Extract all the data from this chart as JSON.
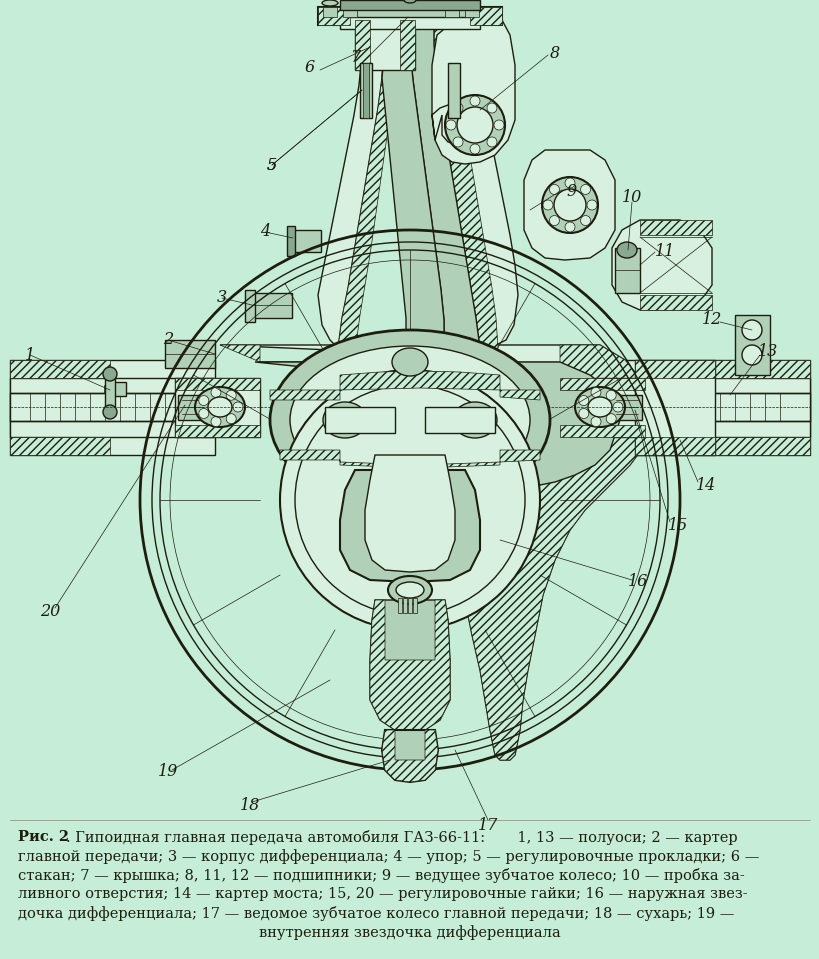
{
  "background_color": "#c5edd8",
  "figure_width": 8.2,
  "figure_height": 9.59,
  "dpi": 100,
  "line_color": "#1e1e0e",
  "fill_bg": "#c5edd8",
  "fill_light": "#d8f0e0",
  "fill_medium": "#b0d0b8",
  "fill_dark": "#88a890",
  "fill_hatch_bg": "#c5edd8",
  "caption_bold": "Рис. 2",
  "caption_rest_line1": ". Гипоидная главная передача автомобиля ГАЗ-66-11:       1, 13 — полуоси; 2 — картер",
  "caption_line2": "главной передачи; 3 — корпус дифференциала; 4 — упор; 5 — регулировочные прокладки; 6 —",
  "caption_line3": "стакан; 7 — крышка; 8, 11, 12 — подшипники; 9 — ведущее зубчатое колесо; 10 — пробка за-",
  "caption_line4": "ливного отверстия; 14 — картер моста; 15, 20 — регулировочные гайки; 16 — наружная звез-",
  "caption_line5": "дочка дифференциала; 17 — ведомое зубчатое колесо главной передачи; 18 — сухарь; 19 —",
  "caption_line6": "внутренняя звездочка дифференциала",
  "cap_fontsize": 10.5,
  "label_fontsize": 11.5
}
